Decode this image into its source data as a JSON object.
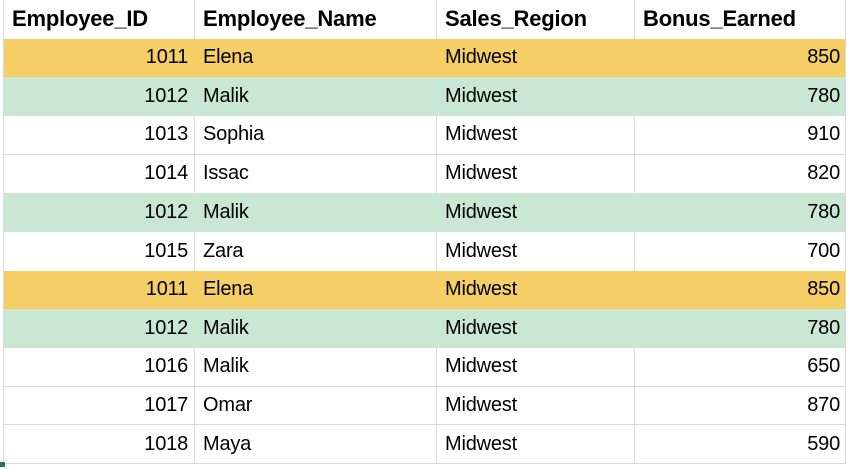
{
  "table": {
    "columns": [
      {
        "key": "employee_id",
        "label": "Employee_ID",
        "header_align": "left",
        "data_align": "right"
      },
      {
        "key": "employee_name",
        "label": "Employee_Name",
        "header_align": "left",
        "data_align": "left"
      },
      {
        "key": "sales_region",
        "label": "Sales_Region",
        "header_align": "left",
        "data_align": "left"
      },
      {
        "key": "bonus_earned",
        "label": "Bonus_Earned",
        "header_align": "left",
        "data_align": "right"
      }
    ],
    "rows": [
      {
        "employee_id": "1011",
        "employee_name": "Elena",
        "sales_region": "Midwest",
        "bonus_earned": "850",
        "highlight": "yellow"
      },
      {
        "employee_id": "1012",
        "employee_name": "Malik",
        "sales_region": "Midwest",
        "bonus_earned": "780",
        "highlight": "green"
      },
      {
        "employee_id": "1013",
        "employee_name": "Sophia",
        "sales_region": "Midwest",
        "bonus_earned": "910",
        "highlight": null
      },
      {
        "employee_id": "1014",
        "employee_name": "Issac",
        "sales_region": "Midwest",
        "bonus_earned": "820",
        "highlight": null
      },
      {
        "employee_id": "1012",
        "employee_name": "Malik",
        "sales_region": "Midwest",
        "bonus_earned": "780",
        "highlight": "green"
      },
      {
        "employee_id": "1015",
        "employee_name": "Zara",
        "sales_region": "Midwest",
        "bonus_earned": "700",
        "highlight": null
      },
      {
        "employee_id": "1011",
        "employee_name": "Elena",
        "sales_region": "Midwest",
        "bonus_earned": "850",
        "highlight": "yellow"
      },
      {
        "employee_id": "1012",
        "employee_name": "Malik",
        "sales_region": "Midwest",
        "bonus_earned": "780",
        "highlight": "green"
      },
      {
        "employee_id": "1016",
        "employee_name": "Malik",
        "sales_region": "Midwest",
        "bonus_earned": "650",
        "highlight": null
      },
      {
        "employee_id": "1017",
        "employee_name": "Omar",
        "sales_region": "Midwest",
        "bonus_earned": "870",
        "highlight": null
      },
      {
        "employee_id": "1018",
        "employee_name": "Maya",
        "sales_region": "Midwest",
        "bonus_earned": "590",
        "highlight": null
      }
    ]
  },
  "colors": {
    "highlight_yellow": "#F5CE65",
    "highlight_green": "#C9E7D3",
    "gridline": "#D9D9D9",
    "selection_handle": "#1F7A44",
    "text": "#000000",
    "background": "#FFFFFF"
  }
}
